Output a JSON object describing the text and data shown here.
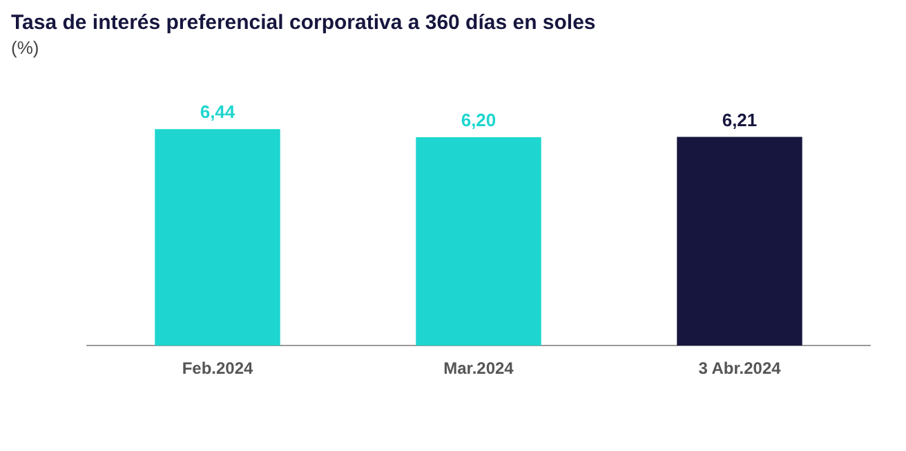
{
  "chart_data": {
    "type": "bar",
    "title": "Tasa de interés preferencial corporativa a 360 días en soles",
    "subtitle": "(%)",
    "categories": [
      "Feb.2024",
      "Mar.2024",
      "3 Abr.2024"
    ],
    "values": [
      6.44,
      6.2,
      6.21
    ],
    "colors": [
      "#1ed6cf",
      "#1ed6cf",
      "#16163f"
    ],
    "value_labels": [
      "6,44",
      "6,20",
      "6,21"
    ],
    "grid": false,
    "legend": false,
    "tick_labels": "x"
  }
}
